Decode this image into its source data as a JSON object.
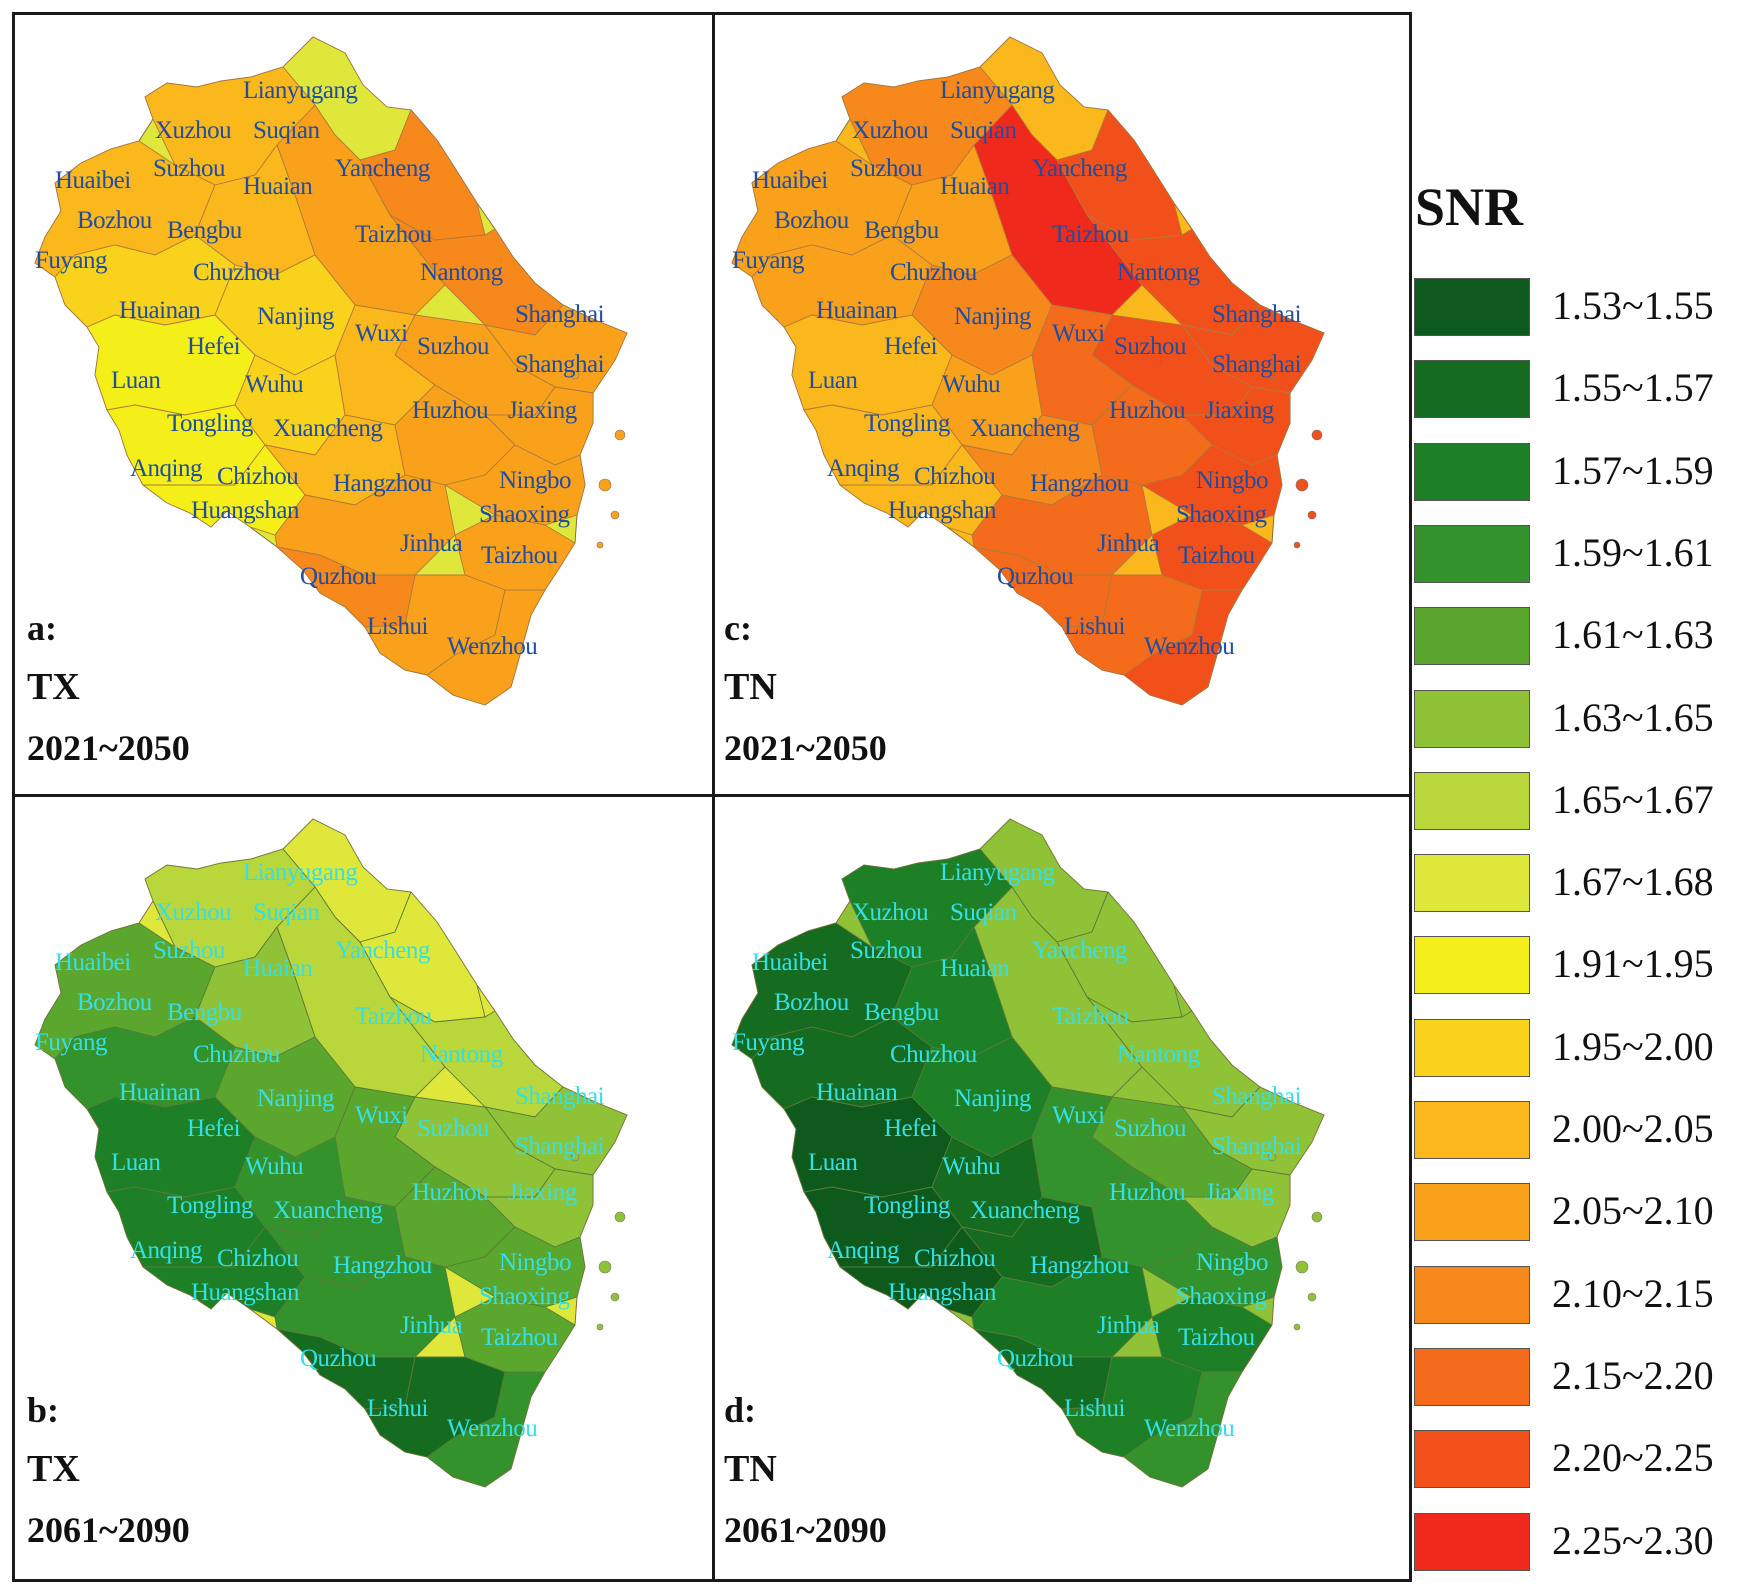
{
  "panels": [
    {
      "id": "a",
      "letter": "a:",
      "variable": "TX",
      "period": "2021~2050",
      "label_color": "#1f4ea1"
    },
    {
      "id": "c",
      "letter": "c:",
      "variable": "TN",
      "period": "2021~2050",
      "label_color": "#1f4ea1"
    },
    {
      "id": "b",
      "letter": "b:",
      "variable": "TX",
      "period": "2061~2090",
      "label_color": "#33e0e8"
    },
    {
      "id": "d",
      "letter": "d:",
      "variable": "TN",
      "period": "2061~2090",
      "label_color": "#33e0e8"
    }
  ],
  "cities": [
    "Lianyugang",
    "Xuzhou",
    "Suqian",
    "Huaibei",
    "Suzhou",
    "Huaian",
    "Yancheng",
    "Bozhou",
    "Bengbu",
    "Taizhou",
    "Fuyang",
    "Chuzhou",
    "Nantong",
    "Huainan",
    "Nanjing",
    "Shanghai",
    "Wuxi",
    "Suzhou",
    "Hefei",
    "Shanghai",
    "Luan",
    "Wuhu",
    "Huzhou",
    "Jiaxing",
    "Tongling",
    "Xuancheng",
    "Anqing",
    "Chizhou",
    "Hangzhou",
    "Ningbo",
    "Huangshan",
    "Shaoxing",
    "Jinhua",
    "Taizhou",
    "Quzhou",
    "Lishui",
    "Wenzhou"
  ],
  "legend": {
    "title": "SNR",
    "items": [
      {
        "label": "1.53~1.55",
        "color": "#0d5a1c"
      },
      {
        "label": "1.55~1.57",
        "color": "#156b20"
      },
      {
        "label": "1.57~1.59",
        "color": "#1d7f26"
      },
      {
        "label": "1.59~1.61",
        "color": "#34922c"
      },
      {
        "label": "1.61~1.63",
        "color": "#5ba72e"
      },
      {
        "label": "1.63~1.65",
        "color": "#8fc236"
      },
      {
        "label": "1.65~1.67",
        "color": "#b9d63a"
      },
      {
        "label": "1.67~1.68",
        "color": "#dfe83a"
      },
      {
        "label": "1.91~1.95",
        "color": "#f4ef19"
      },
      {
        "label": "1.95~2.00",
        "color": "#f9d21c"
      },
      {
        "label": "2.00~2.05",
        "color": "#fbb81c"
      },
      {
        "label": "2.05~2.10",
        "color": "#f9a11b"
      },
      {
        "label": "2.10~2.15",
        "color": "#f7881c"
      },
      {
        "label": "2.15~2.20",
        "color": "#f46b1b"
      },
      {
        "label": "2.20~2.25",
        "color": "#f2501a"
      },
      {
        "label": "2.25~2.30",
        "color": "#ef2a1d"
      }
    ]
  }
}
